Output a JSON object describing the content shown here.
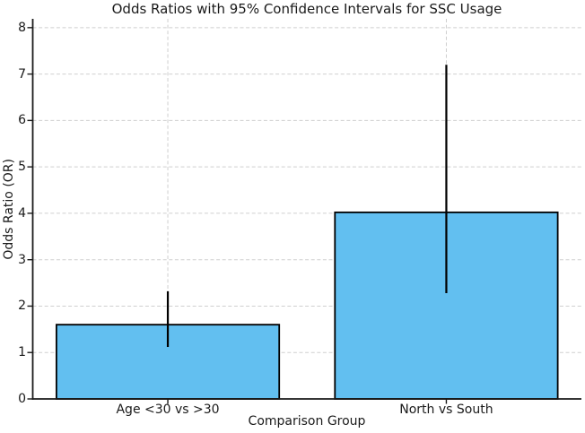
{
  "chart_data": {
    "type": "bar",
    "title": "Odds Ratios with 95% Confidence Intervals for SSC Usage",
    "xlabel": "Comparison Group",
    "ylabel": "Odds Ratio (OR)",
    "categories": [
      "Age <30 vs >30",
      "North vs South"
    ],
    "series": [
      {
        "name": "Odds Ratio",
        "values": [
          1.6,
          4.02
        ],
        "ci_low": [
          1.12,
          2.28
        ],
        "ci_high": [
          2.32,
          7.2
        ]
      }
    ],
    "yticks": [
      0,
      1,
      2,
      3,
      4,
      5,
      6,
      7,
      8
    ],
    "ylim": [
      0,
      8.19
    ],
    "grid": "both",
    "grid_style": "dashed",
    "legend_position": "none",
    "colors": {
      "bar_fill": "#62BFF0",
      "bar_edge": "#000000",
      "error_bar": "#000000",
      "grid_line": "#cfcfcf",
      "axis_line": "#1a1a1a",
      "text": "#1a1a1a",
      "background": "#ffffff"
    }
  }
}
